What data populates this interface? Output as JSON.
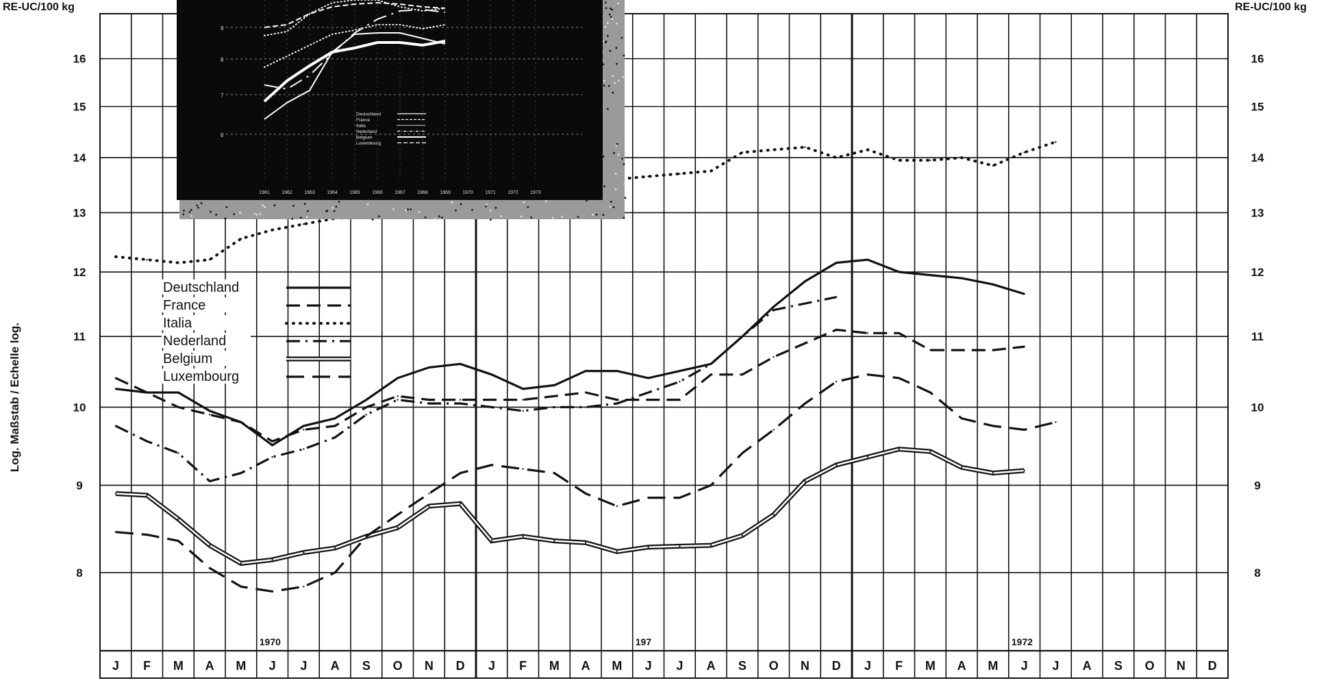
{
  "chart_data": {
    "type": "line",
    "unit_left": "RE-UC/100 kg",
    "unit_right": "RE-UC/100 kg",
    "ylabel": "Log. Maßstab   /   Echelle log.",
    "yscale": "log",
    "ylim": [
      7.2,
      17.0
    ],
    "y_ticks": [
      8,
      9,
      10,
      11,
      12,
      13,
      14,
      15,
      16
    ],
    "months": [
      "J",
      "F",
      "M",
      "A",
      "M",
      "J",
      "J",
      "A",
      "S",
      "O",
      "N",
      "D",
      "J",
      "F",
      "M",
      "A",
      "M",
      "J",
      "J",
      "A",
      "S",
      "O",
      "N",
      "D",
      "J",
      "F",
      "M",
      "A",
      "M",
      "J",
      "J",
      "A",
      "S",
      "O",
      "N",
      "D"
    ],
    "year_labels": [
      {
        "text": "1970",
        "month_index": 5
      },
      {
        "text": "197",
        "month_index": 17
      },
      {
        "text": "1972",
        "month_index": 29
      }
    ],
    "legend": [
      {
        "name": "Deutschland",
        "style": "solid"
      },
      {
        "name": "France",
        "style": "dashed"
      },
      {
        "name": "Italia",
        "style": "dotted"
      },
      {
        "name": "Nederland",
        "style": "dashdot"
      },
      {
        "name": "Belgium",
        "style": "double"
      },
      {
        "name": "Luxembourg",
        "style": "longdash"
      }
    ],
    "series": [
      {
        "name": "Deutschland",
        "style": "solid",
        "values": [
          10.25,
          10.2,
          10.2,
          9.95,
          9.8,
          9.5,
          9.75,
          9.85,
          10.1,
          10.4,
          10.55,
          10.6,
          10.45,
          10.25,
          10.3,
          10.5,
          10.5,
          10.4,
          10.5,
          10.6,
          11.0,
          11.45,
          11.85,
          12.15,
          12.2,
          12.0,
          11.95,
          11.9,
          11.8,
          11.65
        ]
      },
      {
        "name": "France",
        "style": "dashed",
        "values": [
          10.4,
          10.2,
          10.0,
          9.9,
          9.8,
          9.55,
          9.7,
          9.75,
          10.0,
          10.15,
          10.1,
          10.1,
          10.1,
          10.1,
          10.15,
          10.2,
          10.1,
          10.1,
          10.1,
          10.45,
          10.45,
          10.7,
          10.9,
          11.1,
          11.05,
          11.05,
          10.8,
          10.8,
          10.8,
          10.85
        ]
      },
      {
        "name": "Italia",
        "style": "dotted",
        "values": [
          12.25,
          12.2,
          12.15,
          12.2,
          12.55,
          12.7,
          12.8,
          12.9,
          13.1,
          13.2,
          13.3,
          13.4,
          13.55,
          13.55,
          13.6,
          13.6,
          13.6,
          13.65,
          13.7,
          13.75,
          14.1,
          14.15,
          14.2,
          14.0,
          14.15,
          13.95,
          13.95,
          14.0,
          13.85,
          14.1,
          14.3
        ]
      },
      {
        "name": "Nederland",
        "style": "dashdot",
        "values": [
          9.75,
          9.55,
          9.4,
          9.05,
          9.15,
          9.35,
          9.45,
          9.6,
          9.9,
          10.1,
          10.05,
          10.05,
          10.0,
          9.95,
          10.0,
          10.0,
          10.05,
          10.2,
          10.35,
          10.6,
          11.0,
          11.4,
          11.5,
          11.6
        ]
      },
      {
        "name": "Belgium",
        "style": "double",
        "values": [
          8.9,
          8.88,
          8.6,
          8.3,
          8.1,
          8.14,
          8.22,
          8.27,
          8.4,
          8.5,
          8.75,
          8.78,
          8.35,
          8.4,
          8.35,
          8.33,
          8.23,
          8.28,
          8.29,
          8.3,
          8.41,
          8.65,
          9.05,
          9.25,
          9.35,
          9.45,
          9.42,
          9.22,
          9.15,
          9.18
        ]
      },
      {
        "name": "Luxembourg",
        "style": "longdash",
        "values": [
          8.45,
          8.42,
          8.35,
          8.05,
          7.85,
          7.8,
          7.85,
          8.0,
          8.4,
          8.65,
          8.9,
          9.15,
          9.25,
          9.2,
          9.15,
          8.9,
          8.75,
          8.85,
          8.85,
          9.0,
          9.4,
          9.7,
          10.05,
          10.35,
          10.45,
          10.4,
          10.2,
          9.85,
          9.75,
          9.7,
          9.8
        ]
      }
    ],
    "inset": {
      "years": [
        "1961",
        "1962",
        "1963",
        "1964",
        "1965",
        "1966",
        "1967",
        "1968",
        "1969",
        "1970",
        "1971",
        "1972",
        "1973"
      ],
      "y_ticks": [
        "9",
        "8",
        "7",
        "6"
      ],
      "legend": [
        {
          "name": "Deutschland",
          "style": "solid"
        },
        {
          "name": "France",
          "style": "dashed"
        },
        {
          "name": "Italia",
          "style": "dotted"
        },
        {
          "name": "Nederland",
          "style": "dashdot"
        },
        {
          "name": "Belgium",
          "style": "double"
        },
        {
          "name": "Luxembourg",
          "style": "longdash"
        }
      ]
    }
  }
}
